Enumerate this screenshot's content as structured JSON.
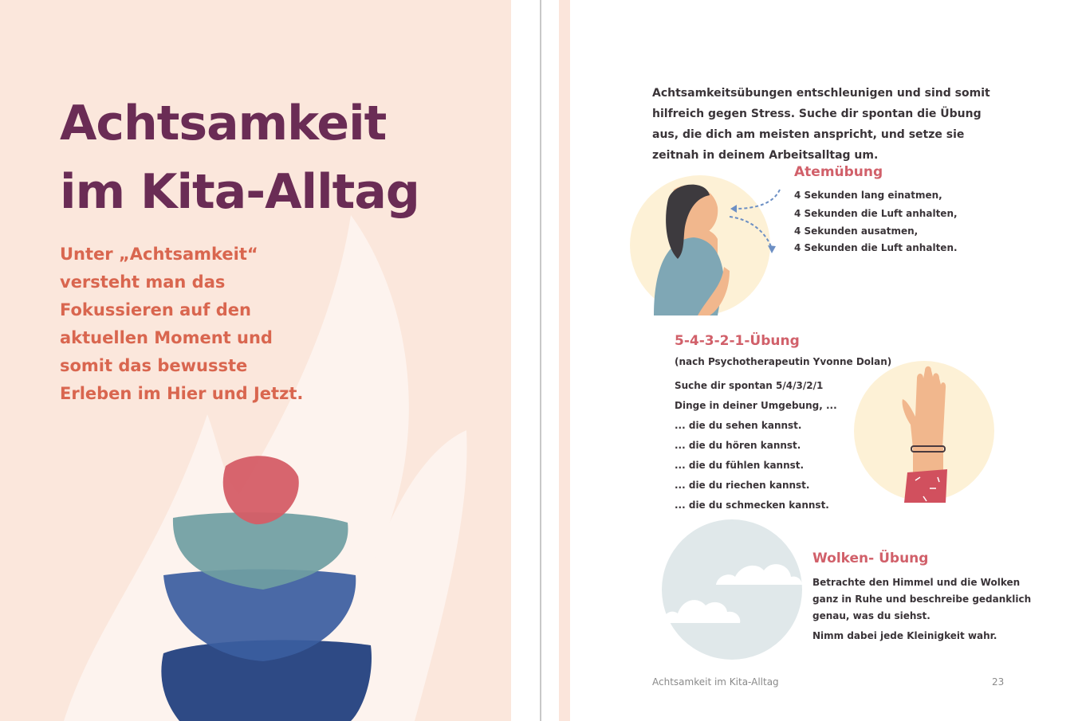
{
  "left_page": {
    "title_line1": "Achtsamkeit",
    "title_line2": "im Kita-Alltag",
    "intro": "Unter „Achtsamkeit“ versteht man das Fokussieren auf den aktuellen Moment und somit das bewusste Erleben im Hier und Jetzt."
  },
  "right_page": {
    "lead": "Achtsamkeitsübungen entschleunigen und sind somit hilfreich gegen Stress. Suche dir spontan die Übung aus, die dich am meisten anspricht, und setze sie zeitnah in deinem Arbeitsalltag um.",
    "exercises": [
      {
        "title": "Atemübung",
        "lines": [
          "4 Sekunden lang einatmen,",
          "4 Sekunden die Luft anhalten,",
          "4 Sekunden ausatmen,",
          "4 Sekunden die Luft anhalten."
        ]
      },
      {
        "title": "5-4-3-2-1-Übung",
        "subtitle": "(nach Psychotherapeutin Yvonne Dolan)",
        "lines": [
          "Suche dir spontan 5/4/3/2/1",
          "Dinge in deiner Umgebung, ...",
          "... die du sehen kannst.",
          "... die du hören kannst.",
          "... die du fühlen kannst.",
          "... die du riechen kannst.",
          "... die du schmecken kannst."
        ]
      },
      {
        "title": "Wolken- Übung",
        "lines": [
          "Betrachte den Himmel und die Wolken",
          "ganz in Ruhe und beschreibe gedanklich",
          "genau, was du siehst.",
          "Nimm dabei jede Kleinigkeit wahr."
        ]
      }
    ],
    "footer_title": "Achtsamkeit im Kita-Alltag",
    "page_number": "23"
  },
  "colors": {
    "title": "#6a2c55",
    "intro": "#d9664f",
    "heading": "#d1606a",
    "background": "#fbe7dc"
  }
}
